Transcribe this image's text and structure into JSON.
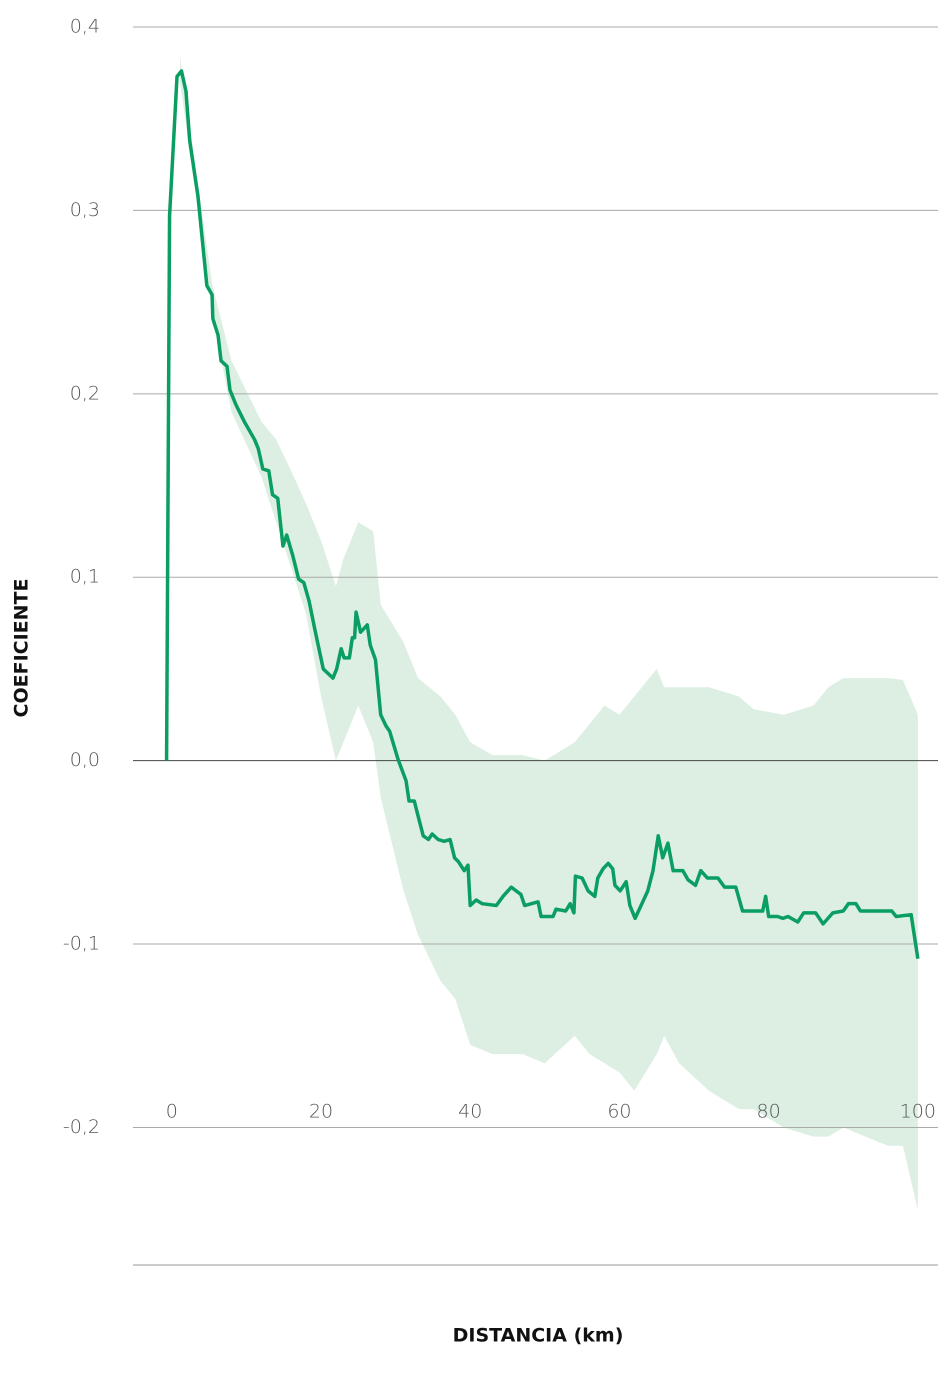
{
  "chart_data": {
    "type": "line",
    "xlabel": "DISTANCIA (km)",
    "ylabel": "COEFICIENTE",
    "xlim": [
      -5.2,
      102.7
    ],
    "ylim": [
      -0.275,
      0.4
    ],
    "xticks": [
      0,
      20,
      40,
      60,
      80,
      100
    ],
    "yticks": [
      {
        "value": 0.4,
        "label": "0,4"
      },
      {
        "value": 0.3,
        "label": "0,3"
      },
      {
        "value": 0.2,
        "label": "0,2"
      },
      {
        "value": 0.1,
        "label": "0,1"
      },
      {
        "value": 0.0,
        "label": "0,0"
      },
      {
        "value": -0.1,
        "label": "-0,1"
      },
      {
        "value": -0.2,
        "label": "-0,2"
      }
    ],
    "grid": true,
    "color": "#0a9e63",
    "band_color": "#dcefe2",
    "x": [
      -0.7,
      -0.3,
      0.7,
      1.3,
      1.9,
      2.4,
      3.5,
      4.7,
      5.4,
      5.5,
      6.2,
      6.6,
      7.4,
      7.8,
      8.6,
      9.7,
      11.1,
      11.6,
      12.2,
      13.0,
      13.5,
      14.2,
      14.9,
      15.4,
      16.2,
      17.0,
      17.7,
      18.4,
      19.2,
      20.3,
      21.6,
      22.1,
      22.7,
      23.1,
      23.8,
      24.2,
      24.5,
      24.7,
      25.3,
      26.2,
      26.6,
      27.3,
      28.0,
      28.7,
      29.2,
      30.3,
      31.4,
      31.8,
      32.5,
      33.0,
      33.7,
      34.4,
      34.9,
      35.7,
      36.5,
      37.3,
      37.9,
      38.4,
      39.2,
      39.7,
      40.0,
      40.8,
      41.6,
      43.5,
      44.4,
      45.5,
      46.8,
      47.3,
      49.1,
      49.5,
      51.1,
      51.5,
      52.8,
      53.4,
      53.9,
      54.1,
      55.0,
      55.8,
      56.7,
      57.1,
      57.8,
      58.5,
      59.1,
      59.4,
      60.1,
      60.9,
      61.4,
      62.1,
      62.9,
      63.8,
      64.5,
      65.2,
      65.8,
      66.5,
      67.2,
      68.5,
      69.2,
      70.2,
      70.9,
      71.8,
      73.2,
      74.1,
      75.6,
      76.5,
      79.2,
      79.6,
      80.0,
      81.2,
      81.9,
      82.6,
      83.9,
      84.7,
      86.3,
      87.3,
      88.6,
      90.0,
      90.7,
      91.7,
      92.3,
      96.5,
      97.1,
      99.1,
      100.0
    ],
    "values": [
      0,
      0.297,
      0.373,
      0.376,
      0.365,
      0.338,
      0.308,
      0.259,
      0.254,
      0.241,
      0.232,
      0.218,
      0.215,
      0.202,
      0.194,
      0.185,
      0.175,
      0.17,
      0.159,
      0.158,
      0.145,
      0.143,
      0.117,
      0.123,
      0.112,
      0.099,
      0.097,
      0.087,
      0.071,
      0.05,
      0.045,
      0.05,
      0.061,
      0.056,
      0.056,
      0.067,
      0.067,
      0.081,
      0.07,
      0.074,
      0.063,
      0.055,
      0.025,
      0.019,
      0.016,
      0.001,
      -0.011,
      -0.022,
      -0.022,
      -0.03,
      -0.041,
      -0.043,
      -0.04,
      -0.043,
      -0.044,
      -0.043,
      -0.053,
      -0.055,
      -0.06,
      -0.057,
      -0.079,
      -0.076,
      -0.078,
      -0.079,
      -0.074,
      -0.069,
      -0.073,
      -0.079,
      -0.077,
      -0.085,
      -0.085,
      -0.081,
      -0.082,
      -0.078,
      -0.083,
      -0.063,
      -0.064,
      -0.071,
      -0.074,
      -0.064,
      -0.059,
      -0.056,
      -0.059,
      -0.068,
      -0.071,
      -0.066,
      -0.079,
      -0.086,
      -0.079,
      -0.071,
      -0.06,
      -0.041,
      -0.053,
      -0.045,
      -0.06,
      -0.06,
      -0.065,
      -0.068,
      -0.06,
      -0.064,
      -0.064,
      -0.069,
      -0.069,
      -0.082,
      -0.082,
      -0.074,
      -0.085,
      -0.085,
      -0.086,
      -0.085,
      -0.088,
      -0.083,
      -0.083,
      -0.089,
      -0.083,
      -0.082,
      -0.078,
      -0.078,
      -0.082,
      -0.082,
      -0.085,
      -0.084,
      -0.108
    ],
    "band": {
      "x": [
        1.1,
        5.4,
        8,
        12,
        14,
        16,
        18,
        20,
        22,
        23,
        25,
        27,
        28,
        31,
        33,
        36,
        38,
        40,
        43,
        47,
        50,
        54,
        56,
        58,
        60,
        62,
        65,
        66,
        68,
        72,
        76,
        78,
        82,
        86,
        88,
        90,
        96,
        98,
        100
      ],
      "upper": [
        0.384,
        0.26,
        0.218,
        0.185,
        0.175,
        0.158,
        0.14,
        0.12,
        0.095,
        0.11,
        0.13,
        0.125,
        0.085,
        0.065,
        0.045,
        0.035,
        0.025,
        0.01,
        0.003,
        0.003,
        0.0,
        0.01,
        0.02,
        0.03,
        0.025,
        0.035,
        0.05,
        0.04,
        0.04,
        0.04,
        0.035,
        0.028,
        0.025,
        0.03,
        0.04,
        0.045,
        0.045,
        0.044,
        0.025
      ],
      "lower": [
        0.37,
        0.245,
        0.19,
        0.155,
        0.13,
        0.105,
        0.08,
        0.035,
        0.0,
        0.01,
        0.03,
        0.01,
        -0.02,
        -0.07,
        -0.095,
        -0.12,
        -0.13,
        -0.155,
        -0.16,
        -0.16,
        -0.165,
        -0.15,
        -0.16,
        -0.165,
        -0.17,
        -0.18,
        -0.16,
        -0.15,
        -0.165,
        -0.18,
        -0.19,
        -0.19,
        -0.2,
        -0.205,
        -0.205,
        -0.2,
        -0.21,
        -0.21,
        -0.245
      ]
    }
  }
}
